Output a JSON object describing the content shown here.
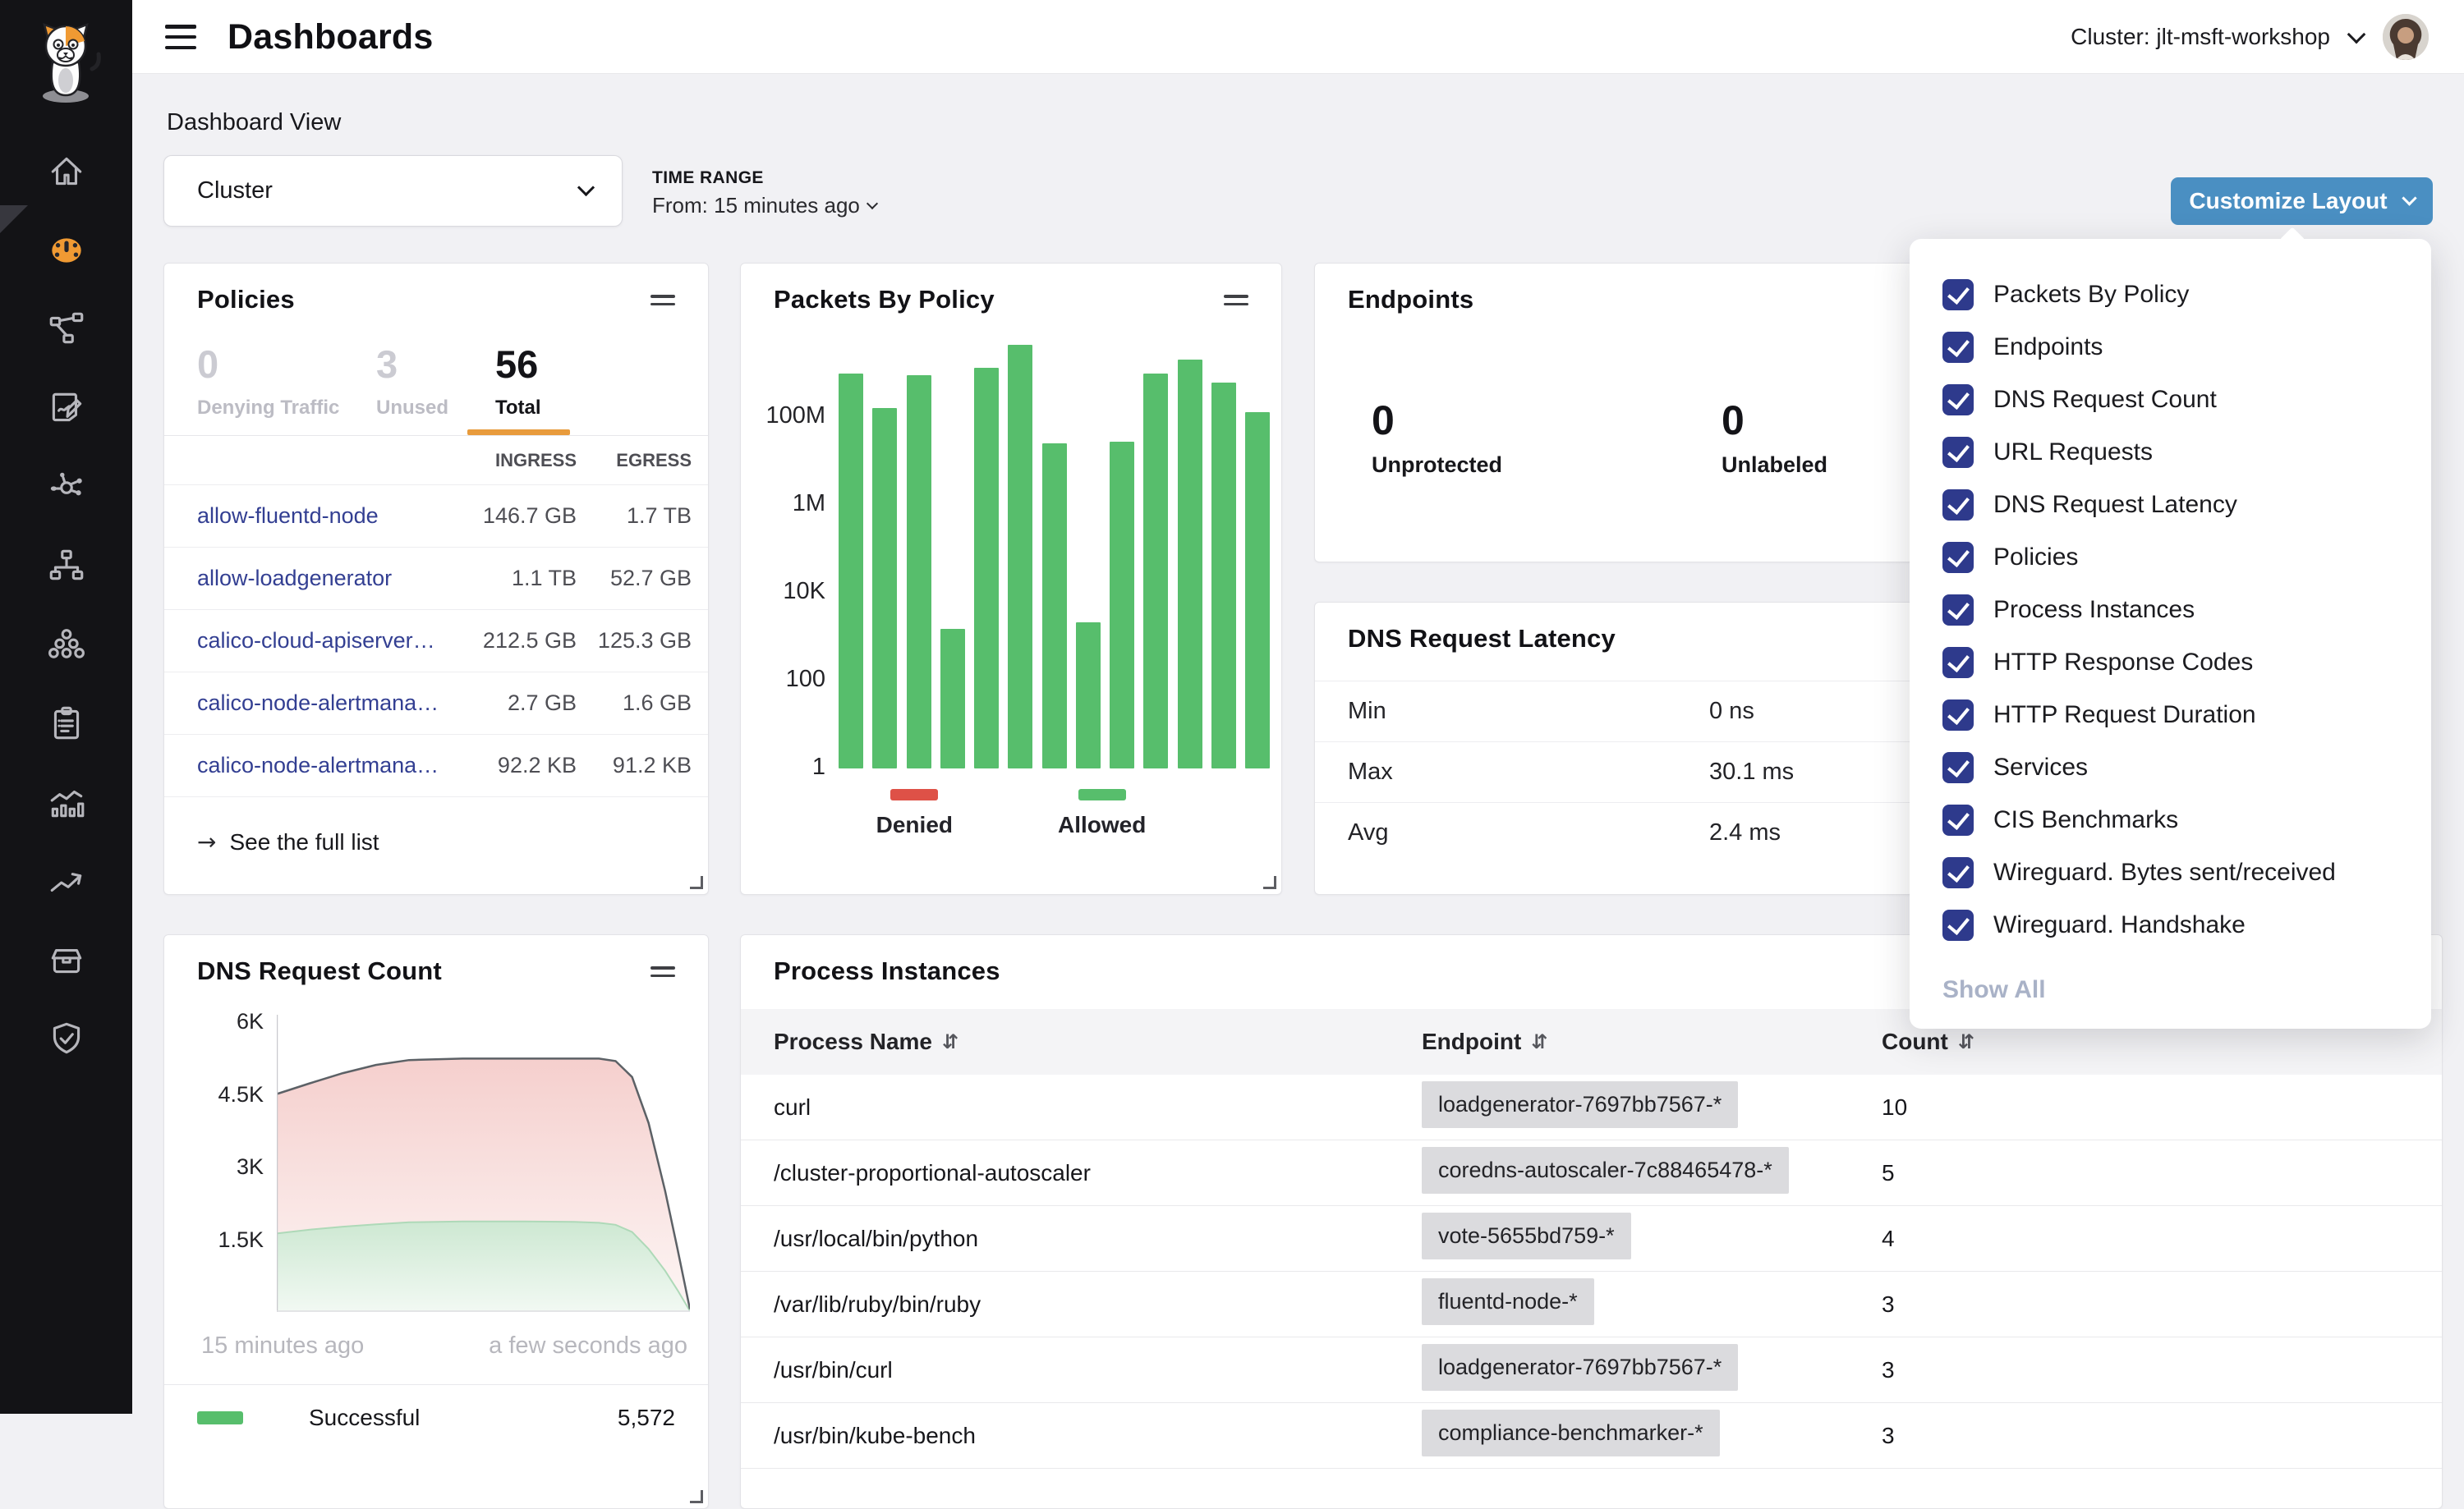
{
  "header": {
    "title": "Dashboards",
    "cluster_label": "Cluster: jlt-msft-workshop"
  },
  "page": {
    "section_title": "Dashboard View",
    "view_select_value": "Cluster",
    "time_range_label": "TIME RANGE",
    "time_range_value": "From: 15 minutes ago",
    "customize_button_label": "Customize Layout"
  },
  "sidebar": {
    "items": [
      {
        "icon": "home",
        "active": false
      },
      {
        "icon": "dashboards",
        "active": true
      },
      {
        "icon": "service-graph",
        "active": false
      },
      {
        "icon": "policies",
        "active": false
      },
      {
        "icon": "flow-visualizations",
        "active": false
      },
      {
        "icon": "network-tree",
        "active": false
      },
      {
        "icon": "clusters",
        "active": false
      },
      {
        "icon": "compliance",
        "active": false
      },
      {
        "icon": "activity",
        "active": false
      },
      {
        "icon": "timeline",
        "active": false
      },
      {
        "icon": "inventory",
        "active": false
      },
      {
        "icon": "threat-defense",
        "active": false
      }
    ]
  },
  "customize_menu": {
    "items": [
      {
        "label": "Packets By Policy",
        "checked": true
      },
      {
        "label": "Endpoints",
        "checked": true
      },
      {
        "label": "DNS Request Count",
        "checked": true
      },
      {
        "label": "URL Requests",
        "checked": true
      },
      {
        "label": "DNS Request Latency",
        "checked": true
      },
      {
        "label": "Policies",
        "checked": true
      },
      {
        "label": "Process Instances",
        "checked": true
      },
      {
        "label": "HTTP Response Codes",
        "checked": true
      },
      {
        "label": "HTTP Request Duration",
        "checked": true
      },
      {
        "label": "Services",
        "checked": true
      },
      {
        "label": "CIS Benchmarks",
        "checked": true
      },
      {
        "label": "Wireguard. Bytes sent/received",
        "checked": true
      },
      {
        "label": "Wireguard. Handshake",
        "checked": true
      }
    ],
    "show_all_label": "Show All"
  },
  "policies_card": {
    "title": "Policies",
    "stats": [
      {
        "value": "0",
        "label": "Denying Traffic",
        "active": false
      },
      {
        "value": "3",
        "label": "Unused",
        "active": false
      },
      {
        "value": "56",
        "label": "Total",
        "active": true
      }
    ],
    "columns": {
      "ingress": "INGRESS",
      "egress": "EGRESS"
    },
    "rows": [
      {
        "name": "allow-fluentd-node",
        "ingress": "146.7 GB",
        "egress": "1.7 TB"
      },
      {
        "name": "allow-loadgenerator",
        "ingress": "1.1 TB",
        "egress": "52.7 GB"
      },
      {
        "name": "calico-cloud-apiserver-…",
        "ingress": "212.5 GB",
        "egress": "125.3 GB"
      },
      {
        "name": "calico-node-alertmana…",
        "ingress": "2.7 GB",
        "egress": "1.6 GB"
      },
      {
        "name": "calico-node-alertmana…",
        "ingress": "92.2 KB",
        "egress": "91.2 KB"
      }
    ],
    "footer_arrow": "→",
    "footer_link": "See the full list"
  },
  "packets_card": {
    "title": "Packets By Policy"
  },
  "endpoints_card": {
    "title": "Endpoints",
    "stats": [
      {
        "value": "0",
        "label": "Unprotected"
      },
      {
        "value": "0",
        "label": "Unlabeled"
      }
    ]
  },
  "dns_latency_card": {
    "title": "DNS Request Latency",
    "rows": [
      {
        "label": "Min",
        "value": "0 ns"
      },
      {
        "label": "Max",
        "value": "30.1 ms"
      },
      {
        "label": "Avg",
        "value": "2.4 ms"
      }
    ]
  },
  "dns_count_card": {
    "title": "DNS Request Count",
    "legend": {
      "label": "Successful",
      "value": "5,572"
    }
  },
  "process_card": {
    "title": "Process Instances",
    "columns": [
      {
        "label": "Process Name"
      },
      {
        "label": "Endpoint"
      },
      {
        "label": "Count"
      }
    ],
    "rows": [
      {
        "process": "curl",
        "endpoint": "loadgenerator-7697bb7567-*",
        "count": "10"
      },
      {
        "process": "/cluster-proportional-autoscaler",
        "endpoint": "coredns-autoscaler-7c88465478-*",
        "count": "5"
      },
      {
        "process": "/usr/local/bin/python",
        "endpoint": "vote-5655bd759-*",
        "count": "4"
      },
      {
        "process": "/var/lib/ruby/bin/ruby",
        "endpoint": "fluentd-node-*",
        "count": "3"
      },
      {
        "process": "/usr/bin/curl",
        "endpoint": "loadgenerator-7697bb7567-*",
        "count": "3"
      },
      {
        "process": "/usr/bin/kube-bench",
        "endpoint": "compliance-benchmarker-*",
        "count": "3"
      }
    ]
  },
  "colors": {
    "brand_orange": "#F09A33",
    "accent_orange": "#E89B3C",
    "green": "#57BE6C",
    "red": "#DE5147",
    "navy": "#2E3A8C",
    "button_blue": "#4A8FC2",
    "link_blue": "#333F92"
  },
  "chart_data": [
    {
      "id": "packets_by_policy",
      "type": "bar",
      "title": "Packets By Policy",
      "yscale": "log",
      "ylim": [
        1,
        10000000000
      ],
      "values": [
        1000000000,
        160000000,
        900000000,
        1500,
        1300000000,
        4500000000,
        25000000,
        2100,
        27000000,
        1000000000,
        2000000000,
        600000000,
        130000000
      ],
      "y_ticks": [
        {
          "label": "1",
          "value": 1
        },
        {
          "label": "100",
          "value": 100
        },
        {
          "label": "10K",
          "value": 10000
        },
        {
          "label": "1M",
          "value": 1000000
        },
        {
          "label": "100M",
          "value": 100000000
        }
      ],
      "legend": [
        {
          "label": "Denied",
          "color": "#DE5147"
        },
        {
          "label": "Allowed",
          "color": "#57BE6C"
        }
      ]
    },
    {
      "id": "dns_request_count",
      "type": "area",
      "title": "DNS Request Count",
      "ylim": [
        0,
        6135
      ],
      "x_percent": [
        0,
        8,
        16,
        24,
        32,
        45,
        60,
        72,
        78,
        82,
        86,
        90,
        94,
        97,
        100
      ],
      "series": [
        {
          "name": "Total",
          "values": [
            4500,
            4720,
            4930,
            5100,
            5200,
            5230,
            5230,
            5230,
            5230,
            5180,
            4850,
            3900,
            2500,
            1300,
            60
          ]
        },
        {
          "name": "Successful",
          "values": [
            1620,
            1700,
            1760,
            1810,
            1850,
            1870,
            1870,
            1860,
            1840,
            1800,
            1650,
            1300,
            850,
            450,
            20
          ]
        }
      ],
      "y_ticks": [
        {
          "label": "1.5K",
          "value": 1500
        },
        {
          "label": "3K",
          "value": 3000
        },
        {
          "label": "4.5K",
          "value": 4500
        },
        {
          "label": "6K",
          "value": 6000
        }
      ],
      "x_axis_labels": [
        "15 minutes ago",
        "a few seconds ago"
      ],
      "legend": [
        {
          "label": "Successful",
          "value": "5,572",
          "color": "#57BE6C"
        }
      ]
    }
  ]
}
